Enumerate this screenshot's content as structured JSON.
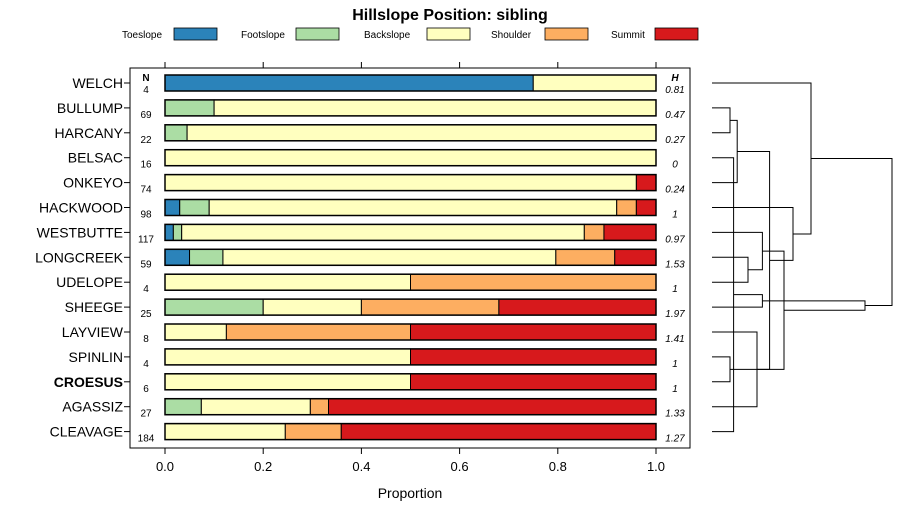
{
  "chart_data": {
    "type": "bar",
    "orientation": "horizontal-stacked",
    "title": "Hillslope Position: sibling",
    "xlabel": "Proportion",
    "xlim": [
      0,
      1
    ],
    "x_ticks": [
      "0.0",
      "0.2",
      "0.4",
      "0.6",
      "0.8",
      "1.0"
    ],
    "legend_placement": "top",
    "n_header": "N",
    "h_header": "H",
    "legend": [
      {
        "name": "Toeslope",
        "color": "#2B83BA"
      },
      {
        "name": "Footslope",
        "color": "#ABDDA4"
      },
      {
        "name": "Backslope",
        "color": "#FFFFBF"
      },
      {
        "name": "Shoulder",
        "color": "#FDAE61"
      },
      {
        "name": "Summit",
        "color": "#D7191C"
      }
    ],
    "categories": [
      {
        "label": "WELCH",
        "n": "4",
        "h": "0.81",
        "bold": false,
        "values": [
          0.75,
          0,
          0.25,
          0,
          0
        ]
      },
      {
        "label": "BULLUMP",
        "n": "69",
        "h": "0.47",
        "bold": false,
        "values": [
          0,
          0.1,
          0.9,
          0,
          0
        ]
      },
      {
        "label": "HARCANY",
        "n": "22",
        "h": "0.27",
        "bold": false,
        "values": [
          0,
          0.045,
          0.955,
          0,
          0
        ]
      },
      {
        "label": "BELSAC",
        "n": "16",
        "h": "0",
        "bold": false,
        "values": [
          0,
          0,
          1.0,
          0,
          0
        ]
      },
      {
        "label": "ONKEYO",
        "n": "74",
        "h": "0.24",
        "bold": false,
        "values": [
          0,
          0,
          0.96,
          0,
          0.04
        ]
      },
      {
        "label": "HACKWOOD",
        "n": "98",
        "h": "1",
        "bold": false,
        "values": [
          0.03,
          0.06,
          0.83,
          0.04,
          0.04
        ]
      },
      {
        "label": "WESTBUTTE",
        "n": "117",
        "h": "0.97",
        "bold": false,
        "values": [
          0.017,
          0.017,
          0.82,
          0.04,
          0.106
        ]
      },
      {
        "label": "LONGCREEK",
        "n": "59",
        "h": "1.53",
        "bold": false,
        "values": [
          0.05,
          0.068,
          0.678,
          0.12,
          0.084
        ]
      },
      {
        "label": "UDELOPE",
        "n": "4",
        "h": "1",
        "bold": false,
        "values": [
          0,
          0,
          0.5,
          0.5,
          0
        ]
      },
      {
        "label": "SHEEGE",
        "n": "25",
        "h": "1.97",
        "bold": false,
        "values": [
          0,
          0.2,
          0.2,
          0.28,
          0.32
        ]
      },
      {
        "label": "LAYVIEW",
        "n": "8",
        "h": "1.41",
        "bold": false,
        "values": [
          0,
          0,
          0.125,
          0.375,
          0.5
        ]
      },
      {
        "label": "SPINLIN",
        "n": "4",
        "h": "1",
        "bold": false,
        "values": [
          0,
          0,
          0.5,
          0,
          0.5
        ]
      },
      {
        "label": "CROESUS",
        "n": "6",
        "h": "1",
        "bold": true,
        "values": [
          0,
          0,
          0.5,
          0,
          0.5
        ]
      },
      {
        "label": "AGASSIZ",
        "n": "27",
        "h": "1.33",
        "bold": false,
        "values": [
          0,
          0.074,
          0.222,
          0.037,
          0.667
        ]
      },
      {
        "label": "CLEAVAGE",
        "n": "184",
        "h": "1.27",
        "bold": false,
        "values": [
          0,
          0,
          0.245,
          0.114,
          0.641
        ]
      }
    ],
    "dendrogram_merges": [
      [
        1,
        2
      ],
      [
        11,
        12
      ],
      [
        4,
        15
      ],
      [
        7,
        8
      ],
      [
        6,
        18
      ],
      [
        14,
        3
      ],
      [
        10,
        13
      ],
      [
        16,
        17
      ],
      [
        9,
        20
      ],
      [
        19,
        21
      ],
      [
        5,
        22
      ],
      [
        0,
        25
      ],
      [
        23,
        24
      ],
      [
        26,
        27
      ]
    ],
    "dendrogram_heights": [
      0.1,
      0.1,
      0.14,
      0.2,
      0.28,
      0.12,
      0.25,
      0.32,
      0.28,
      0.4,
      0.45,
      0.55,
      0.85,
      1.0
    ]
  }
}
